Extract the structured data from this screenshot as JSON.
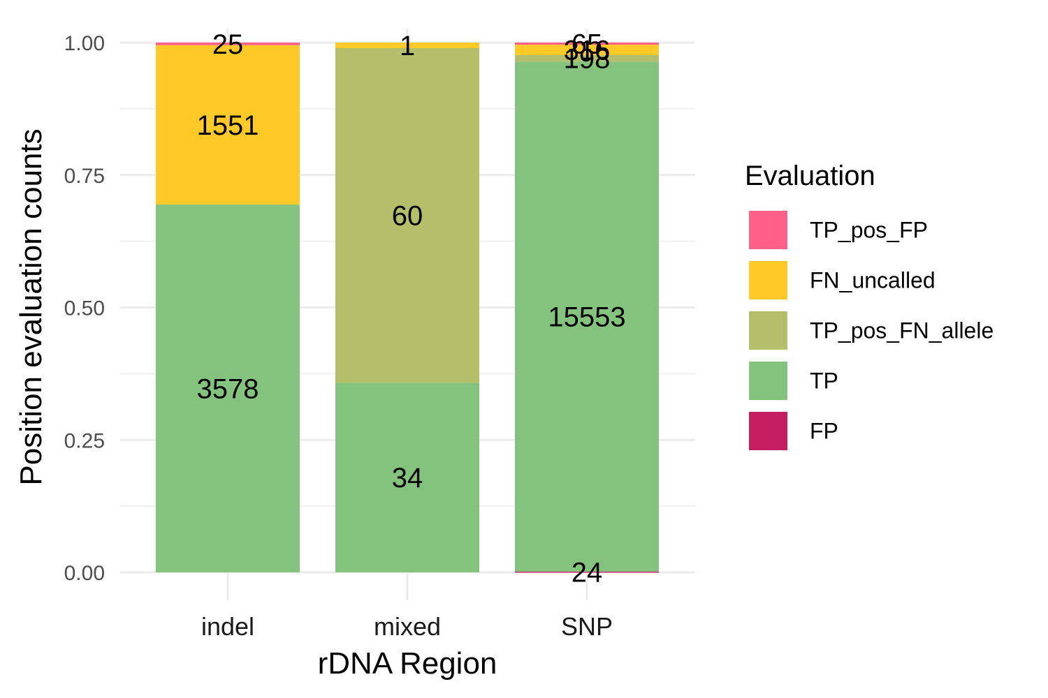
{
  "chart_data": {
    "type": "bar",
    "stacked": true,
    "normalized": true,
    "title": "",
    "xlabel": "rDNA Region",
    "ylabel": "Position evaluation counts",
    "ylim": [
      0,
      1
    ],
    "y_ticks": [
      "0.00",
      "0.25",
      "0.50",
      "0.75",
      "1.00"
    ],
    "y_tick_values": [
      0,
      0.25,
      0.5,
      0.75,
      1.0
    ],
    "grid": true,
    "legend_position": "right",
    "legend_title": "Evaluation",
    "categories": [
      "indel",
      "mixed",
      "SNP"
    ],
    "series": [
      {
        "name": "TP_pos_FP",
        "color": "#FF6088",
        "values": [
          25,
          0,
          65
        ]
      },
      {
        "name": "FN_uncalled",
        "color": "#FFCA28",
        "values": [
          1551,
          1,
          316
        ]
      },
      {
        "name": "TP_pos_FN_allele",
        "color": "#B5BE68",
        "values": [
          0,
          60,
          198
        ]
      },
      {
        "name": "TP",
        "color": "#83C37E",
        "values": [
          3578,
          34,
          15553
        ]
      },
      {
        "name": "FP",
        "color": "#C41E60",
        "values": [
          0,
          0,
          24
        ]
      }
    ]
  }
}
